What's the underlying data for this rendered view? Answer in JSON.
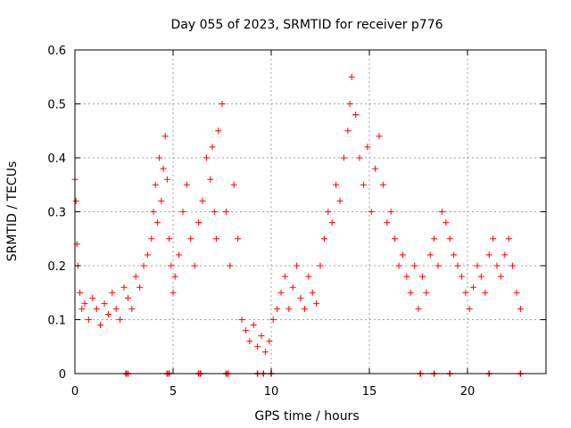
{
  "chart_data": {
    "type": "scatter",
    "title": "Day 055 of 2023, SRMTID for receiver p776",
    "xlabel": "GPS time / hours",
    "ylabel": "SRMTID / TECUs",
    "xlim": [
      0,
      24
    ],
    "ylim": [
      0,
      0.6
    ],
    "xticks": [
      0,
      5,
      10,
      15,
      20
    ],
    "yticks": [
      0,
      0.1,
      0.2,
      0.3,
      0.4,
      0.5,
      0.6
    ],
    "xtick_labels": [
      "0",
      "5",
      "10",
      "15",
      "20"
    ],
    "ytick_labels": [
      "0",
      "0.1",
      "0.2",
      "0.3",
      "0.4",
      "0.5",
      "0.6"
    ],
    "grid": true,
    "marker": "+",
    "color": "#ff0000",
    "series": [
      {
        "name": "SRMTID",
        "x": [
          0.0,
          0.05,
          0.1,
          0.15,
          0.25,
          0.35,
          0.5,
          0.7,
          0.9,
          1.1,
          1.3,
          1.5,
          1.7,
          1.9,
          2.1,
          2.3,
          2.5,
          2.7,
          2.9,
          3.1,
          3.3,
          3.5,
          3.7,
          3.9,
          4.0,
          4.1,
          4.2,
          4.3,
          4.4,
          4.5,
          4.6,
          4.7,
          4.8,
          4.9,
          5.0,
          5.1,
          5.3,
          5.5,
          5.7,
          5.9,
          6.1,
          6.3,
          6.5,
          6.7,
          6.9,
          7.0,
          7.1,
          7.2,
          7.3,
          7.5,
          7.7,
          7.9,
          8.1,
          8.3,
          8.5,
          8.7,
          8.9,
          9.1,
          9.3,
          9.5,
          9.7,
          9.9,
          10.1,
          10.3,
          10.5,
          10.7,
          10.9,
          11.1,
          11.3,
          11.5,
          11.7,
          11.9,
          12.1,
          12.3,
          12.5,
          12.7,
          12.9,
          13.1,
          13.3,
          13.5,
          13.7,
          13.9,
          14.0,
          14.1,
          14.3,
          14.5,
          14.7,
          14.9,
          15.1,
          15.3,
          15.5,
          15.7,
          15.9,
          16.1,
          16.3,
          16.5,
          16.7,
          16.9,
          17.1,
          17.3,
          17.5,
          17.7,
          17.9,
          18.1,
          18.3,
          18.5,
          18.7,
          18.9,
          19.1,
          19.3,
          19.5,
          19.7,
          19.9,
          20.1,
          20.3,
          20.5,
          20.7,
          20.9,
          21.1,
          21.3,
          21.5,
          21.7,
          21.9,
          22.1,
          22.3,
          22.5,
          22.7
        ],
        "y": [
          0.36,
          0.32,
          0.24,
          0.2,
          0.15,
          0.12,
          0.13,
          0.1,
          0.14,
          0.12,
          0.09,
          0.13,
          0.11,
          0.15,
          0.12,
          0.1,
          0.16,
          0.14,
          0.12,
          0.18,
          0.16,
          0.2,
          0.22,
          0.25,
          0.3,
          0.35,
          0.28,
          0.4,
          0.32,
          0.38,
          0.44,
          0.36,
          0.25,
          0.2,
          0.15,
          0.18,
          0.22,
          0.3,
          0.35,
          0.25,
          0.2,
          0.28,
          0.32,
          0.4,
          0.36,
          0.42,
          0.3,
          0.25,
          0.45,
          0.5,
          0.3,
          0.2,
          0.35,
          0.25,
          0.1,
          0.08,
          0.06,
          0.09,
          0.05,
          0.07,
          0.04,
          0.06,
          0.1,
          0.12,
          0.15,
          0.18,
          0.12,
          0.16,
          0.2,
          0.14,
          0.12,
          0.18,
          0.15,
          0.13,
          0.2,
          0.25,
          0.3,
          0.28,
          0.35,
          0.32,
          0.4,
          0.45,
          0.5,
          0.55,
          0.48,
          0.4,
          0.35,
          0.42,
          0.3,
          0.38,
          0.44,
          0.35,
          0.28,
          0.3,
          0.25,
          0.2,
          0.22,
          0.18,
          0.15,
          0.2,
          0.12,
          0.18,
          0.15,
          0.22,
          0.25,
          0.2,
          0.3,
          0.28,
          0.25,
          0.22,
          0.2,
          0.18,
          0.15,
          0.12,
          0.16,
          0.2,
          0.18,
          0.15,
          0.22,
          0.25,
          0.2,
          0.18,
          0.22,
          0.25,
          0.2,
          0.15,
          0.12
        ]
      }
    ],
    "zero_markers_x": [
      2.6,
      2.7,
      4.7,
      4.8,
      6.3,
      6.4,
      7.7,
      7.8,
      9.3,
      9.6,
      10.0,
      17.6,
      18.3,
      19.1,
      21.1,
      22.7
    ]
  }
}
